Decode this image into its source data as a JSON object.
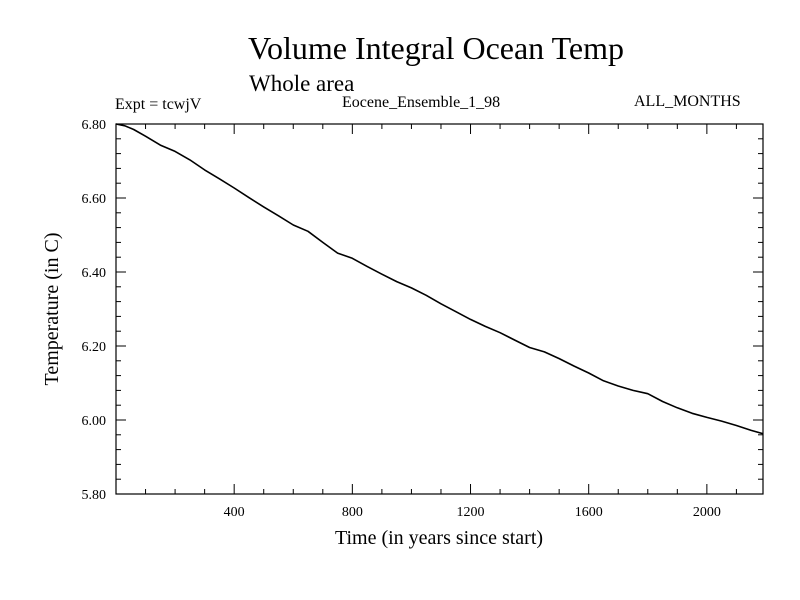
{
  "header": {
    "title": "Volume Integral Ocean Temp",
    "subtitle": "Whole area",
    "experiment": "Expt = tcwjV",
    "run_name": "Eocene_Ensemble_1_98",
    "months": "ALL_MONTHS"
  },
  "chart_data": {
    "type": "line",
    "title": "Volume Integral Ocean Temp",
    "subtitle": "Whole area",
    "xlabel": "Time (in years since start)",
    "ylabel": "Temperature (in C)",
    "xlim": [
      0,
      2190
    ],
    "ylim": [
      5.8,
      6.8
    ],
    "x_ticks": [
      400,
      800,
      1200,
      1600,
      2000
    ],
    "x_tick_labels": [
      "400",
      "800",
      "1200",
      "1600",
      "2000"
    ],
    "y_ticks": [
      5.8,
      6.0,
      6.2,
      6.4,
      6.6,
      6.8
    ],
    "y_tick_labels": [
      "5.80",
      "6.00",
      "6.20",
      "6.40",
      "6.60",
      "6.80"
    ],
    "grid": false,
    "legend": "none",
    "line_color": "#000000",
    "series": [
      {
        "x": [
          0,
          30,
          60,
          100,
          150,
          200,
          250,
          300,
          350,
          400,
          450,
          500,
          550,
          600,
          650,
          700,
          750,
          800,
          850,
          900,
          950,
          1000,
          1050,
          1100,
          1150,
          1200,
          1250,
          1300,
          1350,
          1400,
          1450,
          1500,
          1550,
          1600,
          1650,
          1700,
          1750,
          1800,
          1850,
          1900,
          1950,
          2000,
          2050,
          2100,
          2150,
          2190
        ],
        "values": [
          6.8,
          6.795,
          6.785,
          6.767,
          6.743,
          6.726,
          6.703,
          6.676,
          6.652,
          6.627,
          6.601,
          6.576,
          6.552,
          6.527,
          6.51,
          6.48,
          6.451,
          6.437,
          6.415,
          6.394,
          6.374,
          6.357,
          6.337,
          6.314,
          6.293,
          6.272,
          6.253,
          6.236,
          6.216,
          6.196,
          6.184,
          6.166,
          6.146,
          6.127,
          6.106,
          6.092,
          6.08,
          6.071,
          6.05,
          6.033,
          6.018,
          6.007,
          5.997,
          5.985,
          5.972,
          5.963
        ]
      }
    ]
  }
}
